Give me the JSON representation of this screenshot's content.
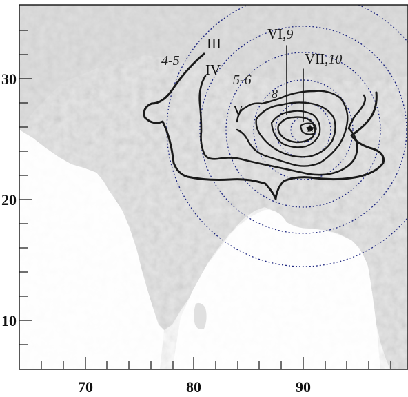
{
  "axes": {
    "x_ticks": [
      "70",
      "80",
      "90"
    ],
    "y_ticks": [
      "30",
      "20",
      "10"
    ]
  },
  "isoseismal_labels": {
    "III": "III",
    "IV": "IV",
    "V": "V",
    "VI": "VI,",
    "VI_model": "9",
    "VII": "VII,",
    "VII_model": "10",
    "model_4_5": "4-5",
    "model_5_6": "5-6",
    "model_8": "8"
  },
  "colors": {
    "land": "#e4e4e4",
    "relief": "#bdbdbd",
    "sea": "#ffffff",
    "isoseismal": "#1a1a1a",
    "model_contour": "#1a237e",
    "frame": "#111111"
  },
  "epicenter_marker": "star"
}
